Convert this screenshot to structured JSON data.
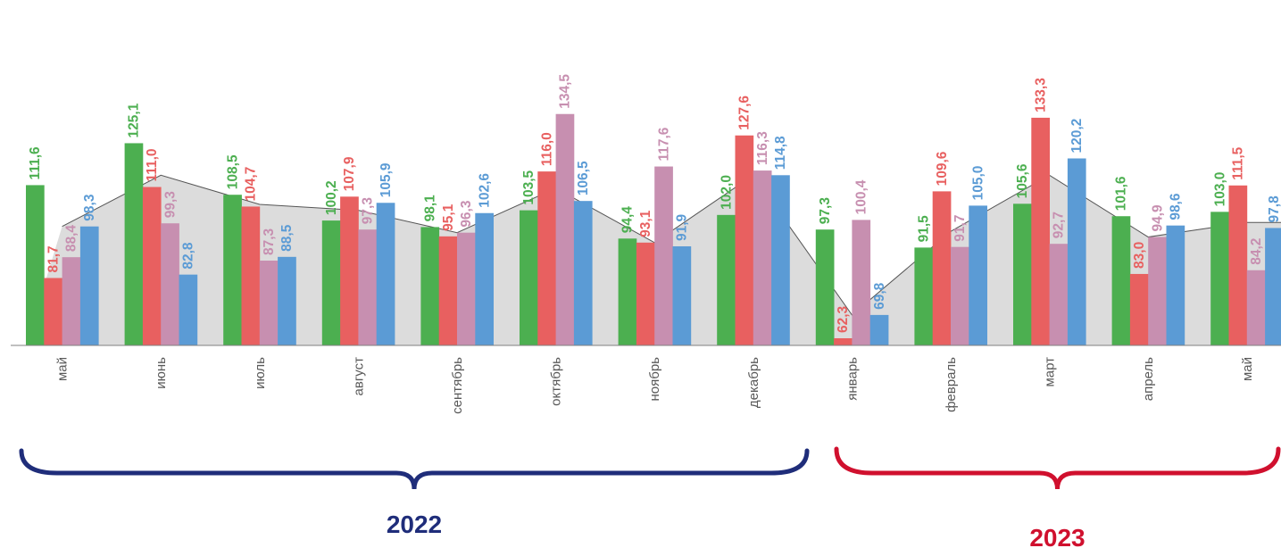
{
  "chart_data": {
    "type": "bar",
    "categories": [
      "май",
      "июнь",
      "июль",
      "август",
      "сентябрь",
      "октябрь",
      "ноябрь",
      "декабрь",
      "январь",
      "февраль",
      "март",
      "апрель",
      "май"
    ],
    "series": [
      {
        "color": "#4caf50",
        "values": [
          111.6,
          125.1,
          108.5,
          100.2,
          98.1,
          103.5,
          94.4,
          102.0,
          97.3,
          91.5,
          105.6,
          101.6,
          103.0
        ],
        "labels": [
          "111,6",
          "125,1",
          "108,5",
          "100,2",
          "98,1",
          "103,5",
          "94,4",
          "102,0",
          "97,3",
          "91,5",
          "105,6",
          "101,6",
          "103,0"
        ]
      },
      {
        "color": "#e86060",
        "values": [
          81.7,
          111.0,
          104.7,
          107.9,
          95.1,
          116.0,
          93.1,
          127.6,
          62.3,
          109.6,
          133.3,
          83.0,
          111.5
        ],
        "labels": [
          "81,7",
          "111,0",
          "104,7",
          "107,9",
          "95,1",
          "116,0",
          "93,1",
          "127,6",
          "62,3",
          "109,6",
          "133,3",
          "83,0",
          "111,5"
        ]
      },
      {
        "color": "#c78fb0",
        "values": [
          88.4,
          99.3,
          87.3,
          97.3,
          96.3,
          134.5,
          117.6,
          116.3,
          100.4,
          91.7,
          92.7,
          94.9,
          84.2
        ],
        "labels": [
          "88,4",
          "99,3",
          "87,3",
          "97,3",
          "96,3",
          "134,5",
          "117,6",
          "116,3",
          "100,4",
          "91,7",
          "92,7",
          "94,9",
          "84,2"
        ]
      },
      {
        "color": "#5b9bd5",
        "values": [
          98.3,
          82.8,
          88.5,
          105.9,
          102.6,
          106.5,
          91.9,
          114.8,
          69.8,
          105.0,
          120.2,
          98.6,
          97.8
        ],
        "labels": [
          "98,3",
          "82,8",
          "88,5",
          "105,9",
          "102,6",
          "106,5",
          "91,9",
          "114,8",
          "69,8",
          "105,0",
          "120,2",
          "98,6",
          "97,8"
        ]
      }
    ],
    "area": {
      "color": "#dcdcdc",
      "values": [
        98.3,
        114.8,
        105.4,
        103.5,
        96.3,
        110.6,
        93.1,
        114.8,
        69.8,
        96.7,
        114.8,
        94.9,
        99.6
      ]
    },
    "ylim": [
      60,
      140
    ],
    "brackets": [
      {
        "label": "2022",
        "color": "#1f2d7a",
        "from": 0,
        "to": 7
      },
      {
        "label": "2023",
        "color": "#d0102e",
        "from": 8,
        "to": 12
      }
    ]
  }
}
